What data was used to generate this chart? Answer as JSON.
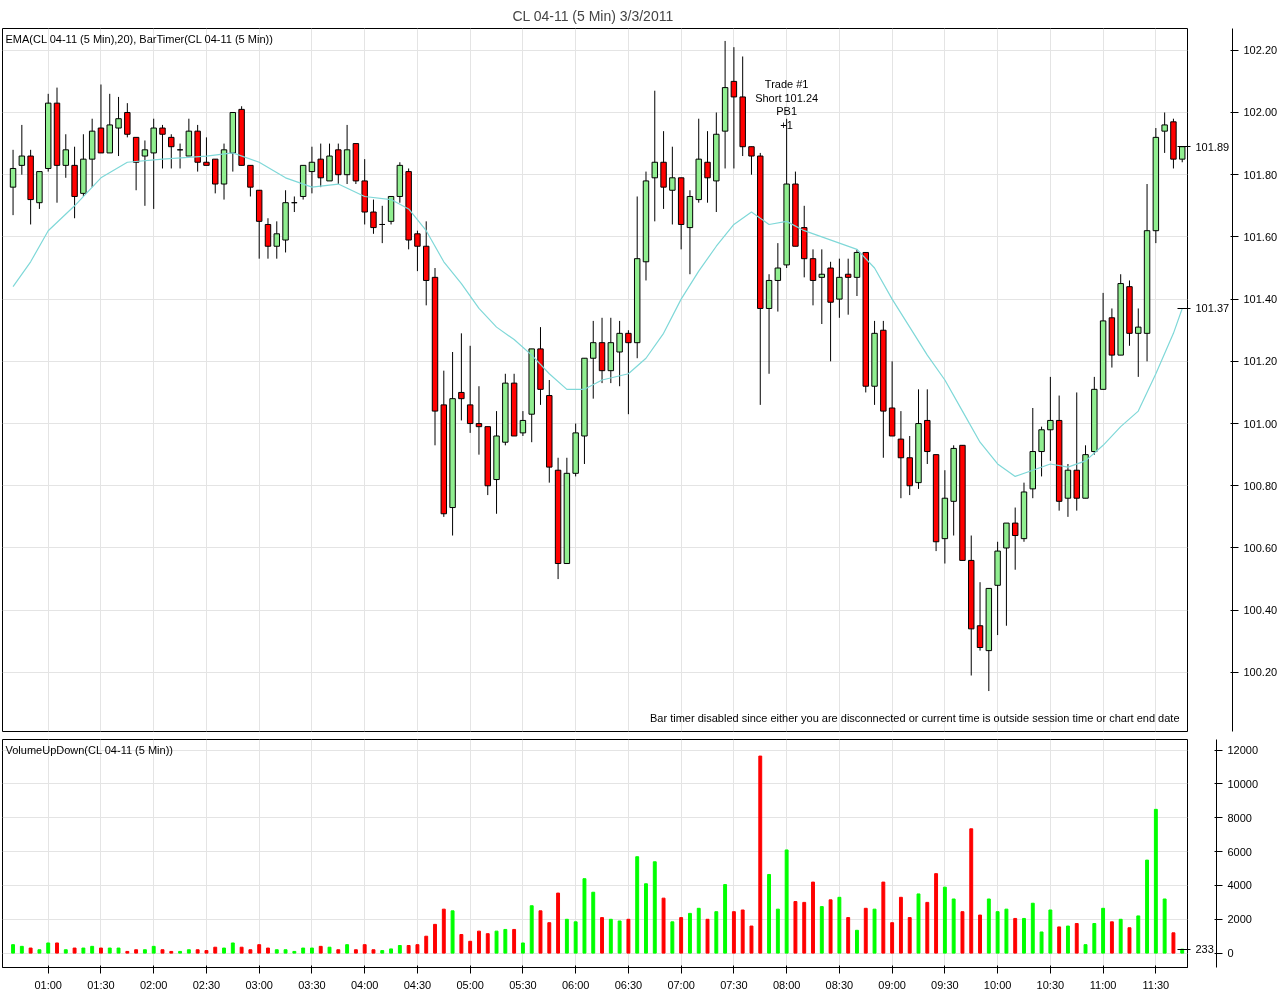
{
  "chart_data": [
    {
      "type": "candlestick",
      "title": "CL 04-11 (5 Min)  3/3/2011",
      "subtitle": "EMA(CL 04-11 (5 Min),20), BarTimer(CL 04-11 (5 Min))",
      "x": [
        "2011-03-03T00:40",
        "2011-03-03T00:45",
        "2011-03-03T00:50",
        "2011-03-03T00:55",
        "2011-03-03T01:00",
        "2011-03-03T01:05",
        "2011-03-03T01:10",
        "2011-03-03T01:15",
        "2011-03-03T01:20",
        "2011-03-03T01:25",
        "2011-03-03T01:30",
        "2011-03-03T01:35",
        "2011-03-03T01:40",
        "2011-03-03T01:45",
        "2011-03-03T01:50",
        "2011-03-03T01:55",
        "2011-03-03T02:00",
        "2011-03-03T02:05",
        "2011-03-03T02:10",
        "2011-03-03T02:15",
        "2011-03-03T02:20",
        "2011-03-03T02:25",
        "2011-03-03T02:30",
        "2011-03-03T02:35",
        "2011-03-03T02:40",
        "2011-03-03T02:45",
        "2011-03-03T02:50",
        "2011-03-03T02:55",
        "2011-03-03T03:00",
        "2011-03-03T03:05",
        "2011-03-03T03:10",
        "2011-03-03T03:15",
        "2011-03-03T03:20",
        "2011-03-03T03:25",
        "2011-03-03T03:30",
        "2011-03-03T03:35",
        "2011-03-03T03:40",
        "2011-03-03T03:45",
        "2011-03-03T03:50",
        "2011-03-03T03:55",
        "2011-03-03T04:00",
        "2011-03-03T04:05",
        "2011-03-03T04:10",
        "2011-03-03T04:15",
        "2011-03-03T04:20",
        "2011-03-03T04:25",
        "2011-03-03T04:30",
        "2011-03-03T04:35",
        "2011-03-03T04:40",
        "2011-03-03T04:45",
        "2011-03-03T04:50",
        "2011-03-03T04:55",
        "2011-03-03T05:00",
        "2011-03-03T05:05",
        "2011-03-03T05:10",
        "2011-03-03T05:15",
        "2011-03-03T05:20",
        "2011-03-03T05:25",
        "2011-03-03T05:30",
        "2011-03-03T05:35",
        "2011-03-03T05:40",
        "2011-03-03T05:45",
        "2011-03-03T05:50",
        "2011-03-03T05:55",
        "2011-03-03T06:00",
        "2011-03-03T06:05",
        "2011-03-03T06:10",
        "2011-03-03T06:15",
        "2011-03-03T06:20",
        "2011-03-03T06:25",
        "2011-03-03T06:30",
        "2011-03-03T06:35",
        "2011-03-03T06:40",
        "2011-03-03T06:45",
        "2011-03-03T06:50",
        "2011-03-03T06:55",
        "2011-03-03T07:00",
        "2011-03-03T07:05",
        "2011-03-03T07:10",
        "2011-03-03T07:15",
        "2011-03-03T07:20",
        "2011-03-03T07:25",
        "2011-03-03T07:30",
        "2011-03-03T07:35",
        "2011-03-03T07:40",
        "2011-03-03T07:45",
        "2011-03-03T07:50",
        "2011-03-03T07:55",
        "2011-03-03T08:00",
        "2011-03-03T08:05",
        "2011-03-03T08:10",
        "2011-03-03T08:15",
        "2011-03-03T08:20",
        "2011-03-03T08:25",
        "2011-03-03T08:30",
        "2011-03-03T08:35",
        "2011-03-03T08:40",
        "2011-03-03T08:45",
        "2011-03-03T08:50",
        "2011-03-03T08:55",
        "2011-03-03T09:00",
        "2011-03-03T09:05",
        "2011-03-03T09:10",
        "2011-03-03T09:15",
        "2011-03-03T09:20",
        "2011-03-03T09:25",
        "2011-03-03T09:30",
        "2011-03-03T09:35",
        "2011-03-03T09:40",
        "2011-03-03T09:45",
        "2011-03-03T09:50",
        "2011-03-03T09:55",
        "2011-03-03T10:00",
        "2011-03-03T10:05",
        "2011-03-03T10:10",
        "2011-03-03T10:15",
        "2011-03-03T10:20",
        "2011-03-03T10:25",
        "2011-03-03T10:30",
        "2011-03-03T10:35",
        "2011-03-03T10:40",
        "2011-03-03T10:45",
        "2011-03-03T10:50",
        "2011-03-03T10:55",
        "2011-03-03T11:00",
        "2011-03-03T11:05",
        "2011-03-03T11:10",
        "2011-03-03T11:15",
        "2011-03-03T11:20",
        "2011-03-03T11:25",
        "2011-03-03T11:30",
        "2011-03-03T11:35",
        "2011-03-03T11:40",
        "2011-03-03T11:45"
      ],
      "ohlc": [
        [
          101.76,
          101.88,
          101.67,
          101.82
        ],
        [
          101.83,
          101.96,
          101.8,
          101.86
        ],
        [
          101.86,
          101.88,
          101.64,
          101.72
        ],
        [
          101.71,
          101.81,
          101.69,
          101.81
        ],
        [
          101.82,
          102.06,
          101.81,
          102.03
        ],
        [
          102.03,
          102.08,
          101.71,
          101.83
        ],
        [
          101.83,
          101.93,
          101.79,
          101.88
        ],
        [
          101.83,
          101.89,
          101.66,
          101.73
        ],
        [
          101.74,
          101.93,
          101.73,
          101.85
        ],
        [
          101.85,
          101.98,
          101.76,
          101.94
        ],
        [
          101.95,
          102.09,
          101.87,
          101.87
        ],
        [
          101.87,
          102.06,
          101.87,
          101.96
        ],
        [
          101.95,
          102.05,
          101.86,
          101.98
        ],
        [
          102.0,
          102.03,
          101.92,
          101.93
        ],
        [
          101.92,
          101.92,
          101.75,
          101.84
        ],
        [
          101.86,
          101.91,
          101.7,
          101.88
        ],
        [
          101.87,
          101.98,
          101.69,
          101.95
        ],
        [
          101.95,
          101.96,
          101.82,
          101.93
        ],
        [
          101.92,
          101.93,
          101.82,
          101.89
        ],
        [
          101.88,
          101.9,
          101.82,
          101.88
        ],
        [
          101.86,
          101.98,
          101.86,
          101.94
        ],
        [
          101.94,
          101.96,
          101.81,
          101.84
        ],
        [
          101.84,
          101.92,
          101.83,
          101.83
        ],
        [
          101.85,
          101.85,
          101.74,
          101.77
        ],
        [
          101.77,
          101.9,
          101.72,
          101.88
        ],
        [
          101.87,
          102.0,
          101.81,
          102.0
        ],
        [
          102.01,
          102.02,
          101.83,
          101.83
        ],
        [
          101.83,
          101.83,
          101.73,
          101.76
        ],
        [
          101.75,
          101.75,
          101.53,
          101.65
        ],
        [
          101.64,
          101.66,
          101.53,
          101.57
        ],
        [
          101.57,
          101.65,
          101.53,
          101.61
        ],
        [
          101.59,
          101.75,
          101.55,
          101.71
        ],
        [
          101.71,
          101.73,
          101.68,
          101.71
        ],
        [
          101.73,
          101.83,
          101.72,
          101.83
        ],
        [
          101.81,
          101.89,
          101.74,
          101.84
        ],
        [
          101.85,
          101.9,
          101.76,
          101.79
        ],
        [
          101.78,
          101.9,
          101.78,
          101.86
        ],
        [
          101.88,
          101.9,
          101.77,
          101.8
        ],
        [
          101.8,
          101.96,
          101.77,
          101.88
        ],
        [
          101.9,
          101.9,
          101.77,
          101.78
        ],
        [
          101.78,
          101.85,
          101.64,
          101.68
        ],
        [
          101.68,
          101.72,
          101.61,
          101.63
        ],
        [
          101.64,
          101.7,
          101.58,
          101.64
        ],
        [
          101.65,
          101.73,
          101.64,
          101.73
        ],
        [
          101.73,
          101.84,
          101.71,
          101.83
        ],
        [
          101.81,
          101.82,
          101.56,
          101.59
        ],
        [
          101.61,
          101.62,
          101.49,
          101.57
        ],
        [
          101.57,
          101.65,
          101.38,
          101.46
        ],
        [
          101.47,
          101.5,
          100.93,
          101.04
        ],
        [
          101.06,
          101.17,
          100.7,
          100.71
        ],
        [
          100.73,
          101.23,
          100.64,
          101.08
        ],
        [
          101.1,
          101.29,
          101.01,
          101.08
        ],
        [
          101.06,
          101.25,
          100.97,
          101.0
        ],
        [
          101.0,
          101.12,
          100.9,
          100.99
        ],
        [
          100.99,
          100.99,
          100.77,
          100.8
        ],
        [
          100.82,
          101.04,
          100.71,
          100.96
        ],
        [
          100.94,
          101.16,
          100.93,
          101.13
        ],
        [
          101.13,
          101.16,
          100.96,
          100.96
        ],
        [
          100.97,
          101.04,
          100.96,
          101.01
        ],
        [
          101.03,
          101.24,
          100.94,
          101.24
        ],
        [
          101.24,
          101.31,
          101.06,
          101.11
        ],
        [
          101.09,
          101.14,
          100.81,
          100.86
        ],
        [
          100.85,
          100.89,
          100.5,
          100.55
        ],
        [
          100.55,
          100.89,
          100.55,
          100.84
        ],
        [
          100.84,
          101.0,
          100.83,
          100.97
        ],
        [
          100.96,
          101.21,
          100.87,
          101.21
        ],
        [
          101.21,
          101.33,
          101.08,
          101.26
        ],
        [
          101.26,
          101.34,
          101.13,
          101.17
        ],
        [
          101.17,
          101.34,
          101.13,
          101.26
        ],
        [
          101.23,
          101.33,
          101.12,
          101.29
        ],
        [
          101.29,
          101.3,
          101.03,
          101.26
        ],
        [
          101.26,
          101.73,
          101.21,
          101.53
        ],
        [
          101.52,
          101.81,
          101.46,
          101.78
        ],
        [
          101.79,
          102.07,
          101.65,
          101.84
        ],
        [
          101.84,
          101.94,
          101.69,
          101.76
        ],
        [
          101.75,
          101.89,
          101.64,
          101.79
        ],
        [
          101.79,
          101.79,
          101.56,
          101.64
        ],
        [
          101.63,
          101.75,
          101.48,
          101.73
        ],
        [
          101.72,
          101.98,
          101.71,
          101.85
        ],
        [
          101.84,
          101.94,
          101.71,
          101.79
        ],
        [
          101.78,
          102.0,
          101.68,
          101.93
        ],
        [
          101.94,
          102.23,
          101.82,
          102.08
        ],
        [
          102.1,
          102.21,
          101.82,
          102.05
        ],
        [
          102.05,
          102.18,
          101.86,
          101.89
        ],
        [
          101.89,
          101.89,
          101.8,
          101.86
        ],
        [
          101.86,
          101.87,
          101.06,
          101.37
        ],
        [
          101.37,
          101.48,
          101.16,
          101.46
        ],
        [
          101.46,
          101.58,
          101.36,
          101.5
        ],
        [
          101.51,
          101.98,
          101.5,
          101.77
        ],
        [
          101.77,
          101.81,
          101.57,
          101.57
        ],
        [
          101.63,
          101.7,
          101.47,
          101.53
        ],
        [
          101.53,
          101.56,
          101.38,
          101.46
        ],
        [
          101.47,
          101.56,
          101.32,
          101.48
        ],
        [
          101.5,
          101.52,
          101.2,
          101.39
        ],
        [
          101.4,
          101.53,
          101.34,
          101.47
        ],
        [
          101.48,
          101.53,
          101.35,
          101.47
        ],
        [
          101.47,
          101.56,
          101.41,
          101.55
        ],
        [
          101.55,
          101.55,
          101.1,
          101.12
        ],
        [
          101.12,
          101.33,
          101.06,
          101.29
        ],
        [
          101.3,
          101.33,
          100.89,
          101.04
        ],
        [
          101.05,
          101.2,
          100.96,
          100.96
        ],
        [
          100.95,
          101.04,
          100.76,
          100.89
        ],
        [
          100.89,
          100.96,
          100.77,
          100.8
        ],
        [
          100.81,
          101.11,
          100.79,
          101.0
        ],
        [
          101.01,
          101.11,
          100.87,
          100.91
        ],
        [
          100.9,
          100.9,
          100.59,
          100.62
        ],
        [
          100.63,
          100.85,
          100.55,
          100.76
        ],
        [
          100.75,
          100.93,
          100.64,
          100.92
        ],
        [
          100.93,
          100.93,
          100.56,
          100.56
        ],
        [
          100.56,
          100.64,
          100.19,
          100.34
        ],
        [
          100.35,
          100.49,
          100.27,
          100.28
        ],
        [
          100.27,
          100.47,
          100.14,
          100.47
        ],
        [
          100.48,
          100.62,
          100.32,
          100.59
        ],
        [
          100.6,
          100.68,
          100.35,
          100.68
        ],
        [
          100.68,
          100.73,
          100.53,
          100.64
        ],
        [
          100.63,
          100.81,
          100.62,
          100.78
        ],
        [
          100.79,
          101.05,
          100.76,
          100.91
        ],
        [
          100.91,
          100.99,
          100.83,
          100.98
        ],
        [
          100.98,
          101.15,
          100.88,
          101.01
        ],
        [
          101.01,
          101.09,
          100.72,
          100.75
        ],
        [
          100.76,
          100.87,
          100.7,
          100.85
        ],
        [
          100.85,
          101.1,
          100.72,
          100.76
        ],
        [
          100.76,
          100.93,
          100.76,
          100.9
        ],
        [
          100.91,
          101.15,
          100.9,
          101.11
        ],
        [
          101.11,
          101.42,
          101.11,
          101.33
        ],
        [
          101.34,
          101.37,
          101.18,
          101.22
        ],
        [
          101.22,
          101.48,
          101.22,
          101.45
        ],
        [
          101.44,
          101.46,
          101.25,
          101.29
        ],
        [
          101.29,
          101.37,
          101.15,
          101.31
        ],
        [
          101.29,
          101.77,
          101.2,
          101.62
        ],
        [
          101.62,
          101.95,
          101.58,
          101.92
        ],
        [
          101.94,
          102.0,
          101.87,
          101.96
        ],
        [
          101.97,
          101.98,
          101.82,
          101.85
        ],
        [
          101.85,
          101.89,
          101.84,
          101.89
        ]
      ],
      "colors": [
        "#90ee90",
        "#90ee90",
        "#ff0000",
        "#90ee90",
        "#90ee90",
        "#ff0000",
        "#90ee90",
        "#ff0000",
        "#90ee90",
        "#90ee90",
        "#ff0000",
        "#90ee90",
        "#90ee90",
        "#ff0000",
        "#ff0000",
        "#90ee90",
        "#90ee90",
        "#ff0000",
        "#ff0000",
        "#000000",
        "#90ee90",
        "#ff0000",
        "#ff0000",
        "#ff0000",
        "#90ee90",
        "#90ee90",
        "#ff0000",
        "#ff0000",
        "#ff0000",
        "#ff0000",
        "#90ee90",
        "#90ee90",
        "#000000",
        "#90ee90",
        "#90ee90",
        "#ff0000",
        "#90ee90",
        "#ff0000",
        "#90ee90",
        "#ff0000",
        "#ff0000",
        "#ff0000",
        "#000000",
        "#90ee90",
        "#90ee90",
        "#ff0000",
        "#ff0000",
        "#ff0000",
        "#ff0000",
        "#ff0000",
        "#90ee90",
        "#ff0000",
        "#ff0000",
        "#ff0000",
        "#ff0000",
        "#90ee90",
        "#90ee90",
        "#ff0000",
        "#90ee90",
        "#90ee90",
        "#ff0000",
        "#ff0000",
        "#ff0000",
        "#90ee90",
        "#90ee90",
        "#90ee90",
        "#90ee90",
        "#ff0000",
        "#90ee90",
        "#90ee90",
        "#ff0000",
        "#90ee90",
        "#90ee90",
        "#90ee90",
        "#ff0000",
        "#90ee90",
        "#ff0000",
        "#90ee90",
        "#90ee90",
        "#ff0000",
        "#90ee90",
        "#90ee90",
        "#ff0000",
        "#ff0000",
        "#ff0000",
        "#ff0000",
        "#90ee90",
        "#90ee90",
        "#90ee90",
        "#ff0000",
        "#ff0000",
        "#ff0000",
        "#90ee90",
        "#ff0000",
        "#90ee90",
        "#ff0000",
        "#90ee90",
        "#ff0000",
        "#90ee90",
        "#ff0000",
        "#ff0000",
        "#ff0000",
        "#ff0000",
        "#90ee90",
        "#ff0000",
        "#ff0000",
        "#90ee90",
        "#90ee90",
        "#ff0000",
        "#ff0000",
        "#ff0000",
        "#90ee90",
        "#90ee90",
        "#90ee90",
        "#ff0000",
        "#90ee90",
        "#90ee90",
        "#90ee90",
        "#90ee90",
        "#ff0000",
        "#90ee90",
        "#ff0000",
        "#90ee90",
        "#90ee90",
        "#90ee90",
        "#ff0000",
        "#90ee90",
        "#ff0000",
        "#90ee90",
        "#90ee90",
        "#90ee90",
        "#90ee90",
        "#ff0000",
        "#90ee90"
      ],
      "series": [
        {
          "type": "line",
          "color": "#7fd8d8",
          "x": [
            "2011-03-03T00:40",
            "2011-03-03T00:50",
            "2011-03-03T01:00",
            "2011-03-03T01:15",
            "2011-03-03T01:30",
            "2011-03-03T01:45",
            "2011-03-03T02:05",
            "2011-03-03T02:30",
            "2011-03-03T02:45",
            "2011-03-03T03:00",
            "2011-03-03T03:15",
            "2011-03-03T03:30",
            "2011-03-03T03:45",
            "2011-03-03T04:00",
            "2011-03-03T04:15",
            "2011-03-03T04:25",
            "2011-03-03T04:35",
            "2011-03-03T04:45",
            "2011-03-03T04:55",
            "2011-03-03T05:05",
            "2011-03-03T05:15",
            "2011-03-03T05:25",
            "2011-03-03T05:35",
            "2011-03-03T05:45",
            "2011-03-03T05:55",
            "2011-03-03T06:05",
            "2011-03-03T06:15",
            "2011-03-03T06:30",
            "2011-03-03T06:40",
            "2011-03-03T06:50",
            "2011-03-03T07:00",
            "2011-03-03T07:10",
            "2011-03-03T07:20",
            "2011-03-03T07:30",
            "2011-03-03T07:40",
            "2011-03-03T07:50",
            "2011-03-03T08:00",
            "2011-03-03T08:10",
            "2011-03-03T08:20",
            "2011-03-03T08:30",
            "2011-03-03T08:40",
            "2011-03-03T08:50",
            "2011-03-03T09:00",
            "2011-03-03T09:10",
            "2011-03-03T09:20",
            "2011-03-03T09:30",
            "2011-03-03T09:40",
            "2011-03-03T09:50",
            "2011-03-03T10:00",
            "2011-03-03T10:10",
            "2011-03-03T10:20",
            "2011-03-03T10:30",
            "2011-03-03T10:40",
            "2011-03-03T10:50",
            "2011-03-03T11:00",
            "2011-03-03T11:10",
            "2011-03-03T11:20",
            "2011-03-03T11:30",
            "2011-03-03T11:40",
            "2011-03-03T11:45"
          ],
          "values": [
            101.44,
            101.52,
            101.62,
            101.7,
            101.79,
            101.84,
            101.85,
            101.86,
            101.87,
            101.84,
            101.79,
            101.76,
            101.77,
            101.73,
            101.72,
            101.69,
            101.62,
            101.52,
            101.45,
            101.37,
            101.31,
            101.27,
            101.22,
            101.16,
            101.11,
            101.11,
            101.14,
            101.16,
            101.21,
            101.29,
            101.4,
            101.49,
            101.57,
            101.64,
            101.68,
            101.64,
            101.65,
            101.62,
            101.6,
            101.58,
            101.56,
            101.5,
            101.4,
            101.31,
            101.22,
            101.14,
            101.04,
            100.94,
            100.87,
            100.83,
            100.85,
            100.87,
            100.86,
            100.88,
            100.93,
            100.99,
            101.04,
            101.16,
            101.29,
            101.37
          ]
        }
      ],
      "xlim": [
        "2011-03-03T00:34",
        "2011-03-03T11:48"
      ],
      "xticks": [
        {
          "value": "2011-03-03T01:00",
          "label": null
        },
        {
          "value": "2011-03-03T01:30",
          "label": null
        },
        {
          "value": "2011-03-03T02:00",
          "label": null
        },
        {
          "value": "2011-03-03T02:30",
          "label": null
        },
        {
          "value": "2011-03-03T03:00",
          "label": null
        },
        {
          "value": "2011-03-03T03:30",
          "label": null
        },
        {
          "value": "2011-03-03T04:00",
          "label": null
        },
        {
          "value": "2011-03-03T04:30",
          "label": null
        },
        {
          "value": "2011-03-03T05:00",
          "label": null
        },
        {
          "value": "2011-03-03T05:30",
          "label": null
        },
        {
          "value": "2011-03-03T06:00",
          "label": null
        },
        {
          "value": "2011-03-03T06:30",
          "label": null
        },
        {
          "value": "2011-03-03T07:00",
          "label": null
        },
        {
          "value": "2011-03-03T07:30",
          "label": null
        },
        {
          "value": "2011-03-03T08:00",
          "label": null
        },
        {
          "value": "2011-03-03T08:30",
          "label": null
        },
        {
          "value": "2011-03-03T09:00",
          "label": null
        },
        {
          "value": "2011-03-03T09:30",
          "label": null
        },
        {
          "value": "2011-03-03T10:00",
          "label": null
        },
        {
          "value": "2011-03-03T10:30",
          "label": null
        },
        {
          "value": "2011-03-03T11:00",
          "label": null
        },
        {
          "value": "2011-03-03T11:30",
          "label": null
        }
      ],
      "ylim": [
        100.01,
        102.27
      ],
      "yticks": [
        {
          "value": 100.2,
          "label": "100.20"
        },
        {
          "value": 100.4,
          "label": "100.40"
        },
        {
          "value": 100.6,
          "label": "100.60"
        },
        {
          "value": 100.8,
          "label": "100.80"
        },
        {
          "value": 101.0,
          "label": "101.00"
        },
        {
          "value": 101.2,
          "label": "101.20"
        },
        {
          "value": 101.4,
          "label": "101.40"
        },
        {
          "value": 101.6,
          "label": "101.60"
        },
        {
          "value": 101.8,
          "label": "101.80"
        },
        {
          "value": 102.0,
          "label": "102.00"
        },
        {
          "value": 102.2,
          "label": "102.20"
        }
      ],
      "tick_labels": "y",
      "grid": true,
      "annotations": [
        {
          "text": "Trade #1\nShort 101.24\nPB1\n+1",
          "x": "2011-03-03T08:00",
          "y": 101.94
        },
        "Bar timer disabled since either you are disconnected or current time is outside session time or chart end date",
        {
          "text": "101.89",
          "x": "2011-03-03T11:45",
          "y": 101.89
        },
        {
          "text": "101.37",
          "x": "2011-03-03T11:45",
          "y": 101.37
        }
      ]
    },
    {
      "type": "bar",
      "title": "VolumeUpDown(CL 04-11 (5 Min))",
      "x": [
        "2011-03-03T00:40",
        "2011-03-03T00:45",
        "2011-03-03T00:50",
        "2011-03-03T00:55",
        "2011-03-03T01:00",
        "2011-03-03T01:05",
        "2011-03-03T01:10",
        "2011-03-03T01:15",
        "2011-03-03T01:20",
        "2011-03-03T01:25",
        "2011-03-03T01:30",
        "2011-03-03T01:35",
        "2011-03-03T01:40",
        "2011-03-03T01:45",
        "2011-03-03T01:50",
        "2011-03-03T01:55",
        "2011-03-03T02:00",
        "2011-03-03T02:05",
        "2011-03-03T02:10",
        "2011-03-03T02:15",
        "2011-03-03T02:20",
        "2011-03-03T02:25",
        "2011-03-03T02:30",
        "2011-03-03T02:35",
        "2011-03-03T02:40",
        "2011-03-03T02:45",
        "2011-03-03T02:50",
        "2011-03-03T02:55",
        "2011-03-03T03:00",
        "2011-03-03T03:05",
        "2011-03-03T03:10",
        "2011-03-03T03:15",
        "2011-03-03T03:20",
        "2011-03-03T03:25",
        "2011-03-03T03:30",
        "2011-03-03T03:35",
        "2011-03-03T03:40",
        "2011-03-03T03:45",
        "2011-03-03T03:50",
        "2011-03-03T03:55",
        "2011-03-03T04:00",
        "2011-03-03T04:05",
        "2011-03-03T04:10",
        "2011-03-03T04:15",
        "2011-03-03T04:20",
        "2011-03-03T04:25",
        "2011-03-03T04:30",
        "2011-03-03T04:35",
        "2011-03-03T04:40",
        "2011-03-03T04:45",
        "2011-03-03T04:50",
        "2011-03-03T04:55",
        "2011-03-03T05:00",
        "2011-03-03T05:05",
        "2011-03-03T05:10",
        "2011-03-03T05:15",
        "2011-03-03T05:20",
        "2011-03-03T05:25",
        "2011-03-03T05:30",
        "2011-03-03T05:35",
        "2011-03-03T05:40",
        "2011-03-03T05:45",
        "2011-03-03T05:50",
        "2011-03-03T05:55",
        "2011-03-03T06:00",
        "2011-03-03T06:05",
        "2011-03-03T06:10",
        "2011-03-03T06:15",
        "2011-03-03T06:20",
        "2011-03-03T06:25",
        "2011-03-03T06:30",
        "2011-03-03T06:35",
        "2011-03-03T06:40",
        "2011-03-03T06:45",
        "2011-03-03T06:50",
        "2011-03-03T06:55",
        "2011-03-03T07:00",
        "2011-03-03T07:05",
        "2011-03-03T07:10",
        "2011-03-03T07:15",
        "2011-03-03T07:20",
        "2011-03-03T07:25",
        "2011-03-03T07:30",
        "2011-03-03T07:35",
        "2011-03-03T07:40",
        "2011-03-03T07:45",
        "2011-03-03T07:50",
        "2011-03-03T07:55",
        "2011-03-03T08:00",
        "2011-03-03T08:05",
        "2011-03-03T08:10",
        "2011-03-03T08:15",
        "2011-03-03T08:20",
        "2011-03-03T08:25",
        "2011-03-03T08:30",
        "2011-03-03T08:35",
        "2011-03-03T08:40",
        "2011-03-03T08:45",
        "2011-03-03T08:50",
        "2011-03-03T08:55",
        "2011-03-03T09:00",
        "2011-03-03T09:05",
        "2011-03-03T09:10",
        "2011-03-03T09:15",
        "2011-03-03T09:20",
        "2011-03-03T09:25",
        "2011-03-03T09:30",
        "2011-03-03T09:35",
        "2011-03-03T09:40",
        "2011-03-03T09:45",
        "2011-03-03T09:50",
        "2011-03-03T09:55",
        "2011-03-03T10:00",
        "2011-03-03T10:05",
        "2011-03-03T10:10",
        "2011-03-03T10:15",
        "2011-03-03T10:20",
        "2011-03-03T10:25",
        "2011-03-03T10:30",
        "2011-03-03T10:35",
        "2011-03-03T10:40",
        "2011-03-03T10:45",
        "2011-03-03T10:50",
        "2011-03-03T10:55",
        "2011-03-03T11:00",
        "2011-03-03T11:05",
        "2011-03-03T11:10",
        "2011-03-03T11:15",
        "2011-03-03T11:20",
        "2011-03-03T11:25",
        "2011-03-03T11:30",
        "2011-03-03T11:35",
        "2011-03-03T11:40",
        "2011-03-03T11:45"
      ],
      "values": [
        500,
        400,
        300,
        200,
        600,
        600,
        200,
        300,
        300,
        400,
        300,
        300,
        300,
        100,
        200,
        200,
        400,
        200,
        100,
        100,
        200,
        200,
        150,
        350,
        300,
        600,
        350,
        200,
        500,
        300,
        200,
        200,
        100,
        300,
        300,
        400,
        350,
        200,
        500,
        200,
        500,
        200,
        150,
        250,
        450,
        450,
        500,
        1000,
        1700,
        2600,
        2500,
        1100,
        700,
        1300,
        1150,
        1300,
        1400,
        1400,
        600,
        2800,
        2500,
        1800,
        3550,
        2000,
        1850,
        4400,
        3600,
        2100,
        2000,
        1900,
        2000,
        5700,
        4100,
        5400,
        3250,
        1850,
        2100,
        2350,
        2650,
        2000,
        2450,
        4050,
        2450,
        2550,
        1600,
        11650,
        4650,
        2600,
        6100,
        3050,
        3000,
        4200,
        2750,
        3150,
        3300,
        2100,
        1350,
        2650,
        2600,
        4200,
        1800,
        3300,
        2100,
        3500,
        3000,
        4700,
        3900,
        3200,
        2450,
        7350,
        2250,
        3200,
        2450,
        2600,
        2050,
        2050,
        2950,
        1250,
        2550,
        1550,
        1600,
        1750,
        500,
        1750,
        2650,
        1850,
        2000,
        1500,
        2200,
        5500,
        8500,
        3200,
        1200,
        233
      ],
      "colors": [
        "#00ff00",
        "#00ff00",
        "#ff0000",
        "#00ff00",
        "#00ff00",
        "#ff0000",
        "#00ff00",
        "#ff0000",
        "#00ff00",
        "#00ff00",
        "#ff0000",
        "#00ff00",
        "#00ff00",
        "#ff0000",
        "#ff0000",
        "#00ff00",
        "#00ff00",
        "#ff0000",
        "#ff0000",
        "#00ff00",
        "#00ff00",
        "#ff0000",
        "#ff0000",
        "#ff0000",
        "#00ff00",
        "#00ff00",
        "#ff0000",
        "#ff0000",
        "#ff0000",
        "#ff0000",
        "#00ff00",
        "#00ff00",
        "#00ff00",
        "#00ff00",
        "#00ff00",
        "#ff0000",
        "#00ff00",
        "#ff0000",
        "#00ff00",
        "#ff0000",
        "#ff0000",
        "#ff0000",
        "#00ff00",
        "#00ff00",
        "#00ff00",
        "#ff0000",
        "#ff0000",
        "#ff0000",
        "#ff0000",
        "#ff0000",
        "#00ff00",
        "#ff0000",
        "#ff0000",
        "#ff0000",
        "#ff0000",
        "#00ff00",
        "#00ff00",
        "#ff0000",
        "#00ff00",
        "#00ff00",
        "#ff0000",
        "#ff0000",
        "#ff0000",
        "#00ff00",
        "#00ff00",
        "#00ff00",
        "#00ff00",
        "#ff0000",
        "#00ff00",
        "#00ff00",
        "#ff0000",
        "#00ff00",
        "#00ff00",
        "#00ff00",
        "#ff0000",
        "#00ff00",
        "#ff0000",
        "#00ff00",
        "#00ff00",
        "#ff0000",
        "#00ff00",
        "#00ff00",
        "#ff0000",
        "#ff0000",
        "#ff0000",
        "#ff0000",
        "#00ff00",
        "#00ff00",
        "#00ff00",
        "#ff0000",
        "#ff0000",
        "#ff0000",
        "#00ff00",
        "#ff0000",
        "#00ff00",
        "#ff0000",
        "#00ff00",
        "#ff0000",
        "#00ff00",
        "#ff0000",
        "#ff0000",
        "#ff0000",
        "#ff0000",
        "#00ff00",
        "#ff0000",
        "#ff0000",
        "#00ff00",
        "#00ff00",
        "#ff0000",
        "#ff0000",
        "#ff0000",
        "#00ff00",
        "#00ff00",
        "#00ff00",
        "#ff0000",
        "#00ff00",
        "#00ff00",
        "#00ff00",
        "#00ff00",
        "#ff0000",
        "#00ff00",
        "#ff0000",
        "#00ff00",
        "#00ff00",
        "#00ff00",
        "#ff0000",
        "#00ff00",
        "#ff0000",
        "#00ff00",
        "#00ff00",
        "#00ff00",
        "#00ff00",
        "#ff0000",
        "#00ff00"
      ],
      "xlim": [
        "2011-03-03T00:34",
        "2011-03-03T11:48"
      ],
      "xticks": [
        {
          "value": "2011-03-03T01:00",
          "label": "01:00"
        },
        {
          "value": "2011-03-03T01:30",
          "label": "01:30"
        },
        {
          "value": "2011-03-03T02:00",
          "label": "02:00"
        },
        {
          "value": "2011-03-03T02:30",
          "label": "02:30"
        },
        {
          "value": "2011-03-03T03:00",
          "label": "03:00"
        },
        {
          "value": "2011-03-03T03:30",
          "label": "03:30"
        },
        {
          "value": "2011-03-03T04:00",
          "label": "04:00"
        },
        {
          "value": "2011-03-03T04:30",
          "label": "04:30"
        },
        {
          "value": "2011-03-03T05:00",
          "label": "05:00"
        },
        {
          "value": "2011-03-03T05:30",
          "label": "05:30"
        },
        {
          "value": "2011-03-03T06:00",
          "label": "06:00"
        },
        {
          "value": "2011-03-03T06:30",
          "label": "06:30"
        },
        {
          "value": "2011-03-03T07:00",
          "label": "07:00"
        },
        {
          "value": "2011-03-03T07:30",
          "label": "07:30"
        },
        {
          "value": "2011-03-03T08:00",
          "label": "08:00"
        },
        {
          "value": "2011-03-03T08:30",
          "label": "08:30"
        },
        {
          "value": "2011-03-03T09:00",
          "label": "09:00"
        },
        {
          "value": "2011-03-03T09:30",
          "label": "09:30"
        },
        {
          "value": "2011-03-03T10:00",
          "label": "10:00"
        },
        {
          "value": "2011-03-03T10:30",
          "label": "10:30"
        },
        {
          "value": "2011-03-03T11:00",
          "label": "11:00"
        },
        {
          "value": "2011-03-03T11:30",
          "label": "11:30"
        }
      ],
      "ylim": [
        -850,
        12630
      ],
      "yticks": [
        0,
        2000,
        4000,
        6000,
        8000,
        10000,
        12000
      ],
      "grid": true,
      "annotations": [
        {
          "text": "233",
          "x": "2011-03-03T11:45",
          "y": 233
        }
      ]
    }
  ]
}
